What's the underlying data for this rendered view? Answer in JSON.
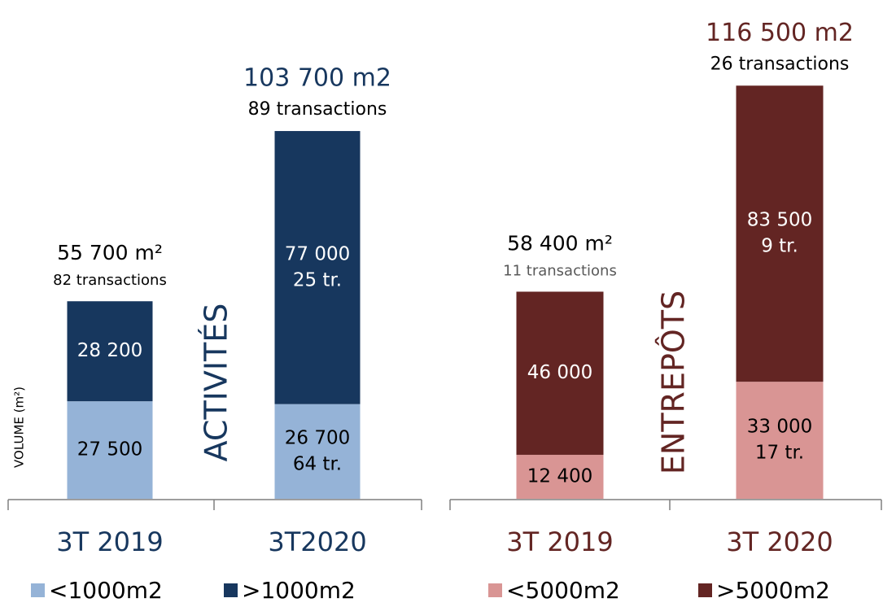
{
  "chart_data": [
    {
      "type": "bar",
      "stacked": true,
      "title": "ACTIVITÉS",
      "y_label": "VOLUME (m²)",
      "categories": [
        "3T 2019",
        "3T2020"
      ],
      "category_color": "#17375e",
      "ylim": [
        0,
        120000
      ],
      "series": [
        {
          "name": "<1000m2",
          "color": "#95b3d7",
          "label_color": "#000000",
          "values": [
            27500,
            26700
          ],
          "value_labels": [
            "27 500",
            "26 700"
          ],
          "sublabels": [
            null,
            "64 tr."
          ]
        },
        {
          "name": ">1000m2",
          "color": "#17375e",
          "label_color": "#ffffff",
          "values": [
            28200,
            77000
          ],
          "value_labels": [
            "28 200",
            "77 000"
          ],
          "sublabels": [
            null,
            "25 tr."
          ]
        }
      ],
      "totals": [
        55700,
        103700
      ],
      "total_labels": [
        "55 700 m²",
        "103 700 m2"
      ],
      "total_colors": [
        "#000000",
        "#17375e"
      ],
      "transaction_labels": [
        "82 transactions",
        "89 transactions"
      ],
      "transaction_colors": [
        "#000000",
        "#000000"
      ]
    },
    {
      "type": "bar",
      "stacked": true,
      "title": "ENTREPÔTS",
      "categories": [
        "3T 2019",
        "3T 2020"
      ],
      "category_color": "#632523",
      "ylim": [
        0,
        120000
      ],
      "series": [
        {
          "name": "<5000m2",
          "color": "#d99594",
          "label_color": "#000000",
          "values": [
            12400,
            33000
          ],
          "value_labels": [
            "12 400",
            "33 000"
          ],
          "sublabels": [
            null,
            "17 tr."
          ]
        },
        {
          "name": ">5000m2",
          "color": "#632523",
          "label_color": "#ffffff",
          "values": [
            46000,
            83500
          ],
          "value_labels": [
            "46 000",
            "83 500"
          ],
          "sublabels": [
            null,
            "9 tr."
          ]
        }
      ],
      "totals": [
        58400,
        116500
      ],
      "total_labels": [
        "58 400 m²",
        "116 500 m2"
      ],
      "total_colors": [
        "#000000",
        "#632523"
      ],
      "transaction_labels": [
        "11 transactions",
        "26 transactions"
      ],
      "transaction_colors": [
        "#595959",
        "#000000"
      ]
    }
  ]
}
